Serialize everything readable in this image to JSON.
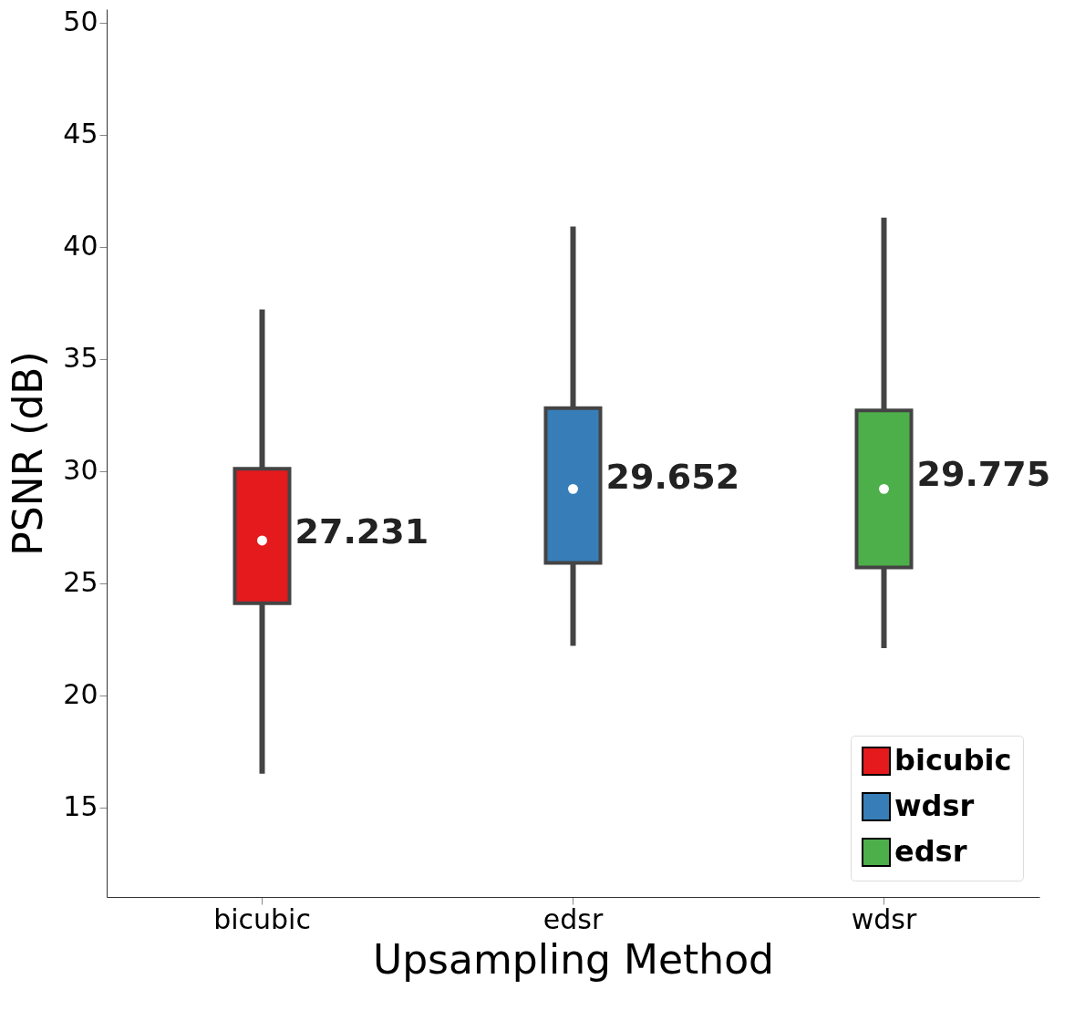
{
  "chart_data": {
    "type": "box",
    "xlabel": "Upsampling Method",
    "ylabel": "PSNR (dB)",
    "categories": [
      "bicubic",
      "edsr",
      "wdsr"
    ],
    "series": [
      {
        "name": "bicubic",
        "color": "#e41a1c",
        "boxes": [
          {
            "low": 16.5,
            "q1": 24.1,
            "median": 26.9,
            "q3": 30.1,
            "high": 37.2
          },
          null,
          null
        ]
      },
      {
        "name": "wdsr",
        "color": "#377eb8",
        "boxes": [
          null,
          {
            "low": 22.2,
            "q1": 25.9,
            "median": 29.2,
            "q3": 32.8,
            "high": 40.9
          },
          null
        ]
      },
      {
        "name": "edsr",
        "color": "#4daf4a",
        "boxes": [
          null,
          null,
          {
            "low": 22.1,
            "q1": 25.7,
            "median": 29.2,
            "q3": 32.7,
            "high": 41.3
          }
        ]
      }
    ],
    "annotations": [
      {
        "text": "27.231",
        "x": "bicubic",
        "y": 27.231
      },
      {
        "text": "29.652",
        "x": "edsr",
        "y": 29.652
      },
      {
        "text": "29.775",
        "x": "wdsr",
        "y": 29.775
      }
    ],
    "ylim": [
      11,
      50.6
    ],
    "yticks": [
      15,
      20,
      25,
      30,
      35,
      40,
      45,
      50
    ],
    "grid": false,
    "legend": "bottom right"
  }
}
